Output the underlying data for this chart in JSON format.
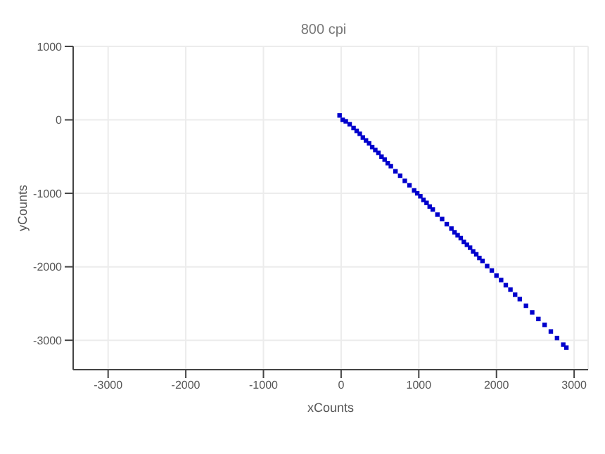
{
  "chart_data": {
    "type": "scatter",
    "subtitle": "800 cpi",
    "xlabel": "xCounts",
    "ylabel": "yCounts",
    "xlim": [
      -3450,
      3180
    ],
    "ylim": [
      -3400,
      1000
    ],
    "xticks": [
      -3000,
      -2000,
      -1000,
      0,
      1000,
      2000,
      3000
    ],
    "yticks": [
      -3000,
      -2000,
      -1000,
      0,
      1000
    ],
    "grid": true,
    "marker": "square",
    "x": [
      -20,
      20,
      60,
      110,
      160,
      200,
      240,
      280,
      320,
      360,
      400,
      440,
      480,
      520,
      560,
      600,
      640,
      700,
      760,
      820,
      880,
      940,
      980,
      1020,
      1060,
      1100,
      1140,
      1180,
      1240,
      1300,
      1360,
      1420,
      1460,
      1500,
      1540,
      1580,
      1620,
      1660,
      1700,
      1740,
      1780,
      1820,
      1880,
      1940,
      2000,
      2060,
      2120,
      2180,
      2240,
      2300,
      2380,
      2460,
      2540,
      2620,
      2700,
      2780,
      2860,
      2900
    ],
    "series": [
      {
        "color": "#0000cc",
        "values": [
          60,
          0,
          -20,
          -60,
          -110,
          -150,
          -190,
          -240,
          -280,
          -320,
          -370,
          -410,
          -450,
          -500,
          -540,
          -590,
          -630,
          -700,
          -760,
          -830,
          -890,
          -960,
          -1000,
          -1040,
          -1090,
          -1130,
          -1180,
          -1220,
          -1290,
          -1350,
          -1420,
          -1480,
          -1530,
          -1570,
          -1610,
          -1660,
          -1700,
          -1740,
          -1790,
          -1830,
          -1880,
          -1920,
          -1990,
          -2050,
          -2120,
          -2180,
          -2250,
          -2310,
          -2380,
          -2440,
          -2530,
          -2620,
          -2710,
          -2790,
          -2880,
          -2970,
          -3060,
          -3100
        ]
      }
    ]
  }
}
